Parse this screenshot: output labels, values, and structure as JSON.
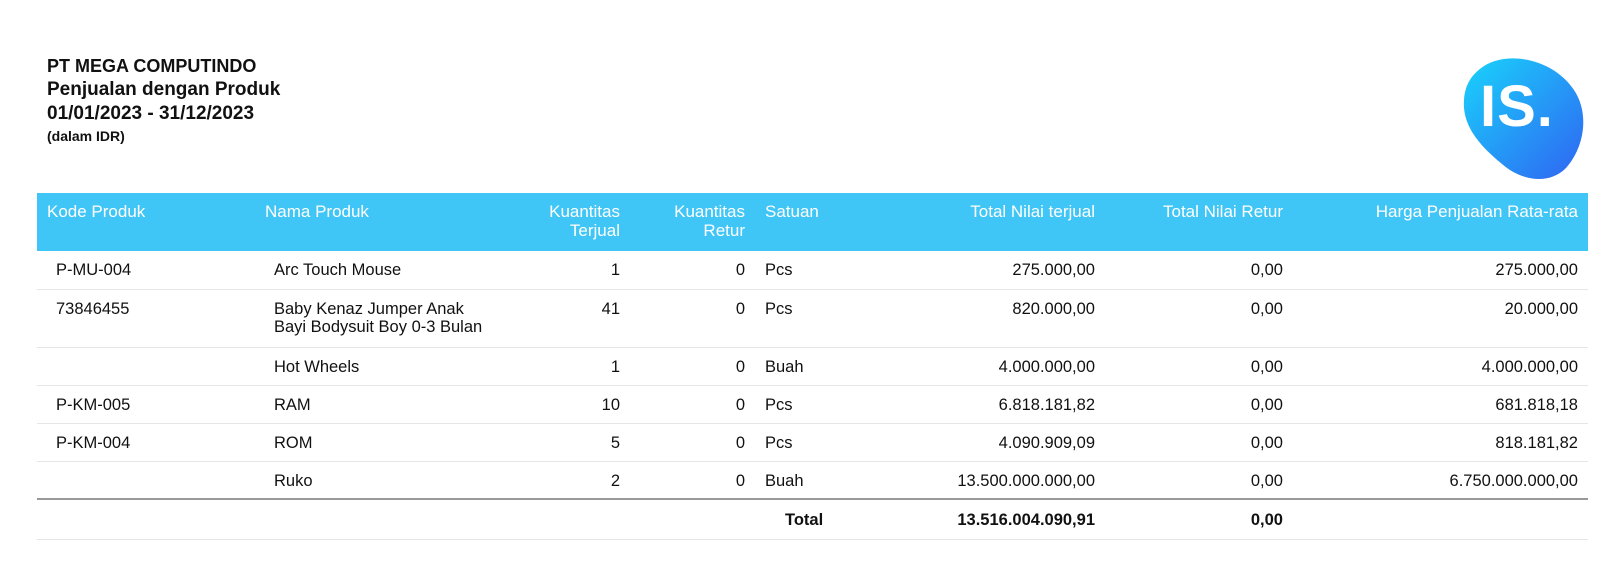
{
  "header": {
    "company": "PT MEGA COMPUTINDO",
    "title": "Penjualan dengan Produk",
    "period": "01/01/2023 - 31/12/2023",
    "currency_note": "(dalam IDR)"
  },
  "logo": {
    "text": "IS.",
    "colors": {
      "start": "#19d3fb",
      "end": "#2f64f2"
    }
  },
  "table": {
    "columns": {
      "code": "Kode Produk",
      "name": "Nama Produk",
      "qty_sold_1": "Kuantitas",
      "qty_sold_2": "Terjual",
      "qty_ret_1": "Kuantitas",
      "qty_ret_2": "Retur",
      "unit": "Satuan",
      "total_sold": "Total Nilai terjual",
      "total_return": "Total Nilai Retur",
      "avg_price": "Harga Penjualan Rata-rata"
    },
    "rows": [
      {
        "code": "P-MU-004",
        "name_1": "Arc Touch Mouse",
        "name_2": "",
        "qty_sold": "1",
        "qty_ret": "0",
        "unit": "Pcs",
        "total_sold": "275.000,00",
        "total_return": "0,00",
        "avg_price": "275.000,00"
      },
      {
        "code": "73846455",
        "name_1": "Baby Kenaz Jumper Anak",
        "name_2": "Bayi Bodysuit Boy 0-3 Bulan",
        "qty_sold": "41",
        "qty_ret": "0",
        "unit": "Pcs",
        "total_sold": "820.000,00",
        "total_return": "0,00",
        "avg_price": "20.000,00"
      },
      {
        "code": "",
        "name_1": "Hot Wheels",
        "name_2": "",
        "qty_sold": "1",
        "qty_ret": "0",
        "unit": "Buah",
        "total_sold": "4.000.000,00",
        "total_return": "0,00",
        "avg_price": "4.000.000,00"
      },
      {
        "code": "P-KM-005",
        "name_1": "RAM",
        "name_2": "",
        "qty_sold": "10",
        "qty_ret": "0",
        "unit": "Pcs",
        "total_sold": "6.818.181,82",
        "total_return": "0,00",
        "avg_price": "681.818,18"
      },
      {
        "code": "P-KM-004",
        "name_1": "ROM",
        "name_2": "",
        "qty_sold": "5",
        "qty_ret": "0",
        "unit": "Pcs",
        "total_sold": "4.090.909,09",
        "total_return": "0,00",
        "avg_price": "818.181,82"
      },
      {
        "code": "",
        "name_1": "Ruko",
        "name_2": "",
        "qty_sold": "2",
        "qty_ret": "0",
        "unit": "Buah",
        "total_sold": "13.500.000.000,00",
        "total_return": "0,00",
        "avg_price": "6.750.000.000,00"
      }
    ],
    "total": {
      "label": "Total",
      "total_sold": "13.516.004.090,91",
      "total_return": "0,00"
    }
  }
}
